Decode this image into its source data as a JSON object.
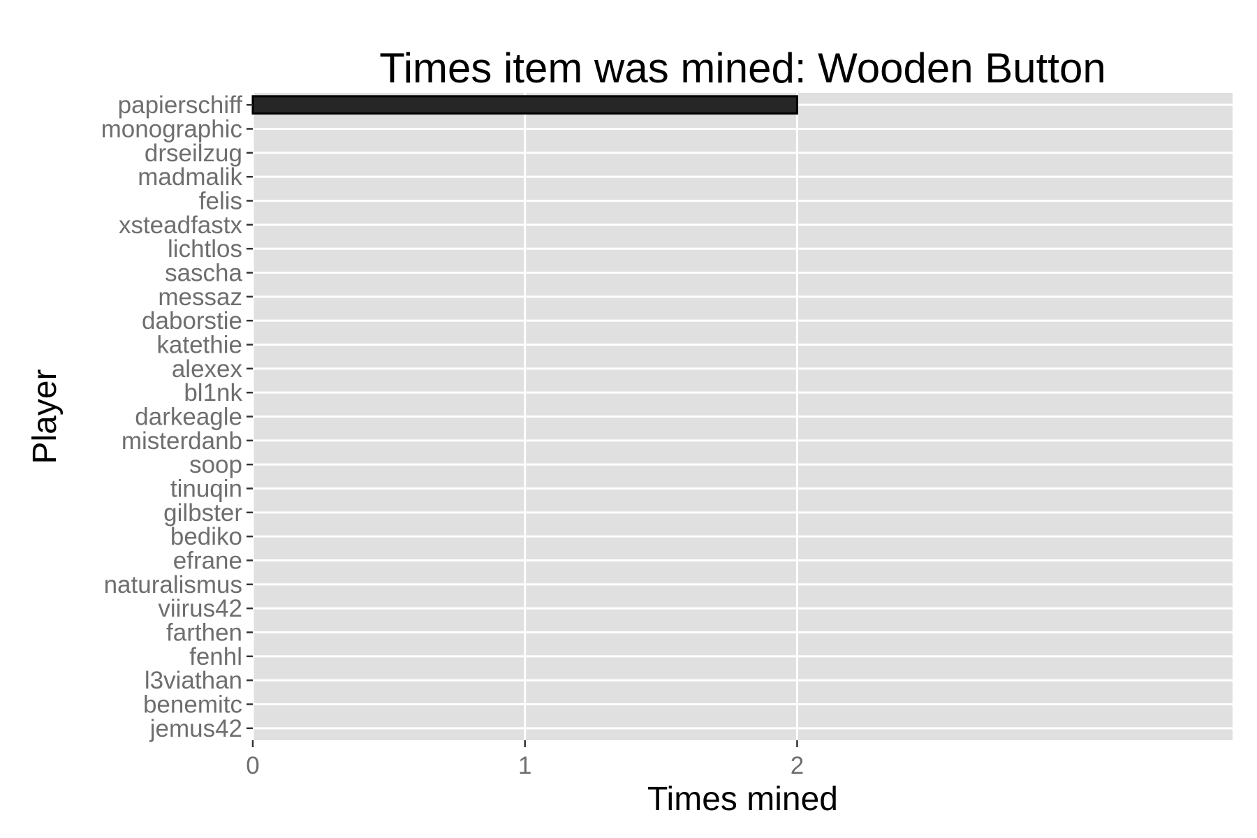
{
  "colors": {
    "panel_background": "#e0e0e0",
    "grid_line": "#ffffff",
    "bar_fill": "#262626",
    "bar_outline": "#000000",
    "tick_text": "#6e6e6e",
    "tick_mark": "#333333",
    "title_text": "#000000"
  },
  "chart_data": {
    "type": "bar",
    "orientation": "horizontal",
    "title": "Times item was mined: Wooden Button",
    "xlabel": "Times mined",
    "ylabel": "Player",
    "xlim": [
      0,
      3.6
    ],
    "x_ticks": [
      0,
      1,
      2
    ],
    "grid": true,
    "categories": [
      "papierschiff",
      "monographic",
      "drseilzug",
      "madmalik",
      "felis",
      "xsteadfastx",
      "lichtlos",
      "sascha",
      "messaz",
      "daborstie",
      "katethie",
      "alexex",
      "bl1nk",
      "darkeagle",
      "misterdanb",
      "soop",
      "tinuqin",
      "gilbster",
      "bediko",
      "efrane",
      "naturalismus",
      "viirus42",
      "farthen",
      "fenhl",
      "l3viathan",
      "benemitc",
      "jemus42"
    ],
    "values": [
      2,
      0,
      0,
      0,
      0,
      0,
      0,
      0,
      0,
      0,
      0,
      0,
      0,
      0,
      0,
      0,
      0,
      0,
      0,
      0,
      0,
      0,
      0,
      0,
      0,
      0,
      0
    ]
  }
}
